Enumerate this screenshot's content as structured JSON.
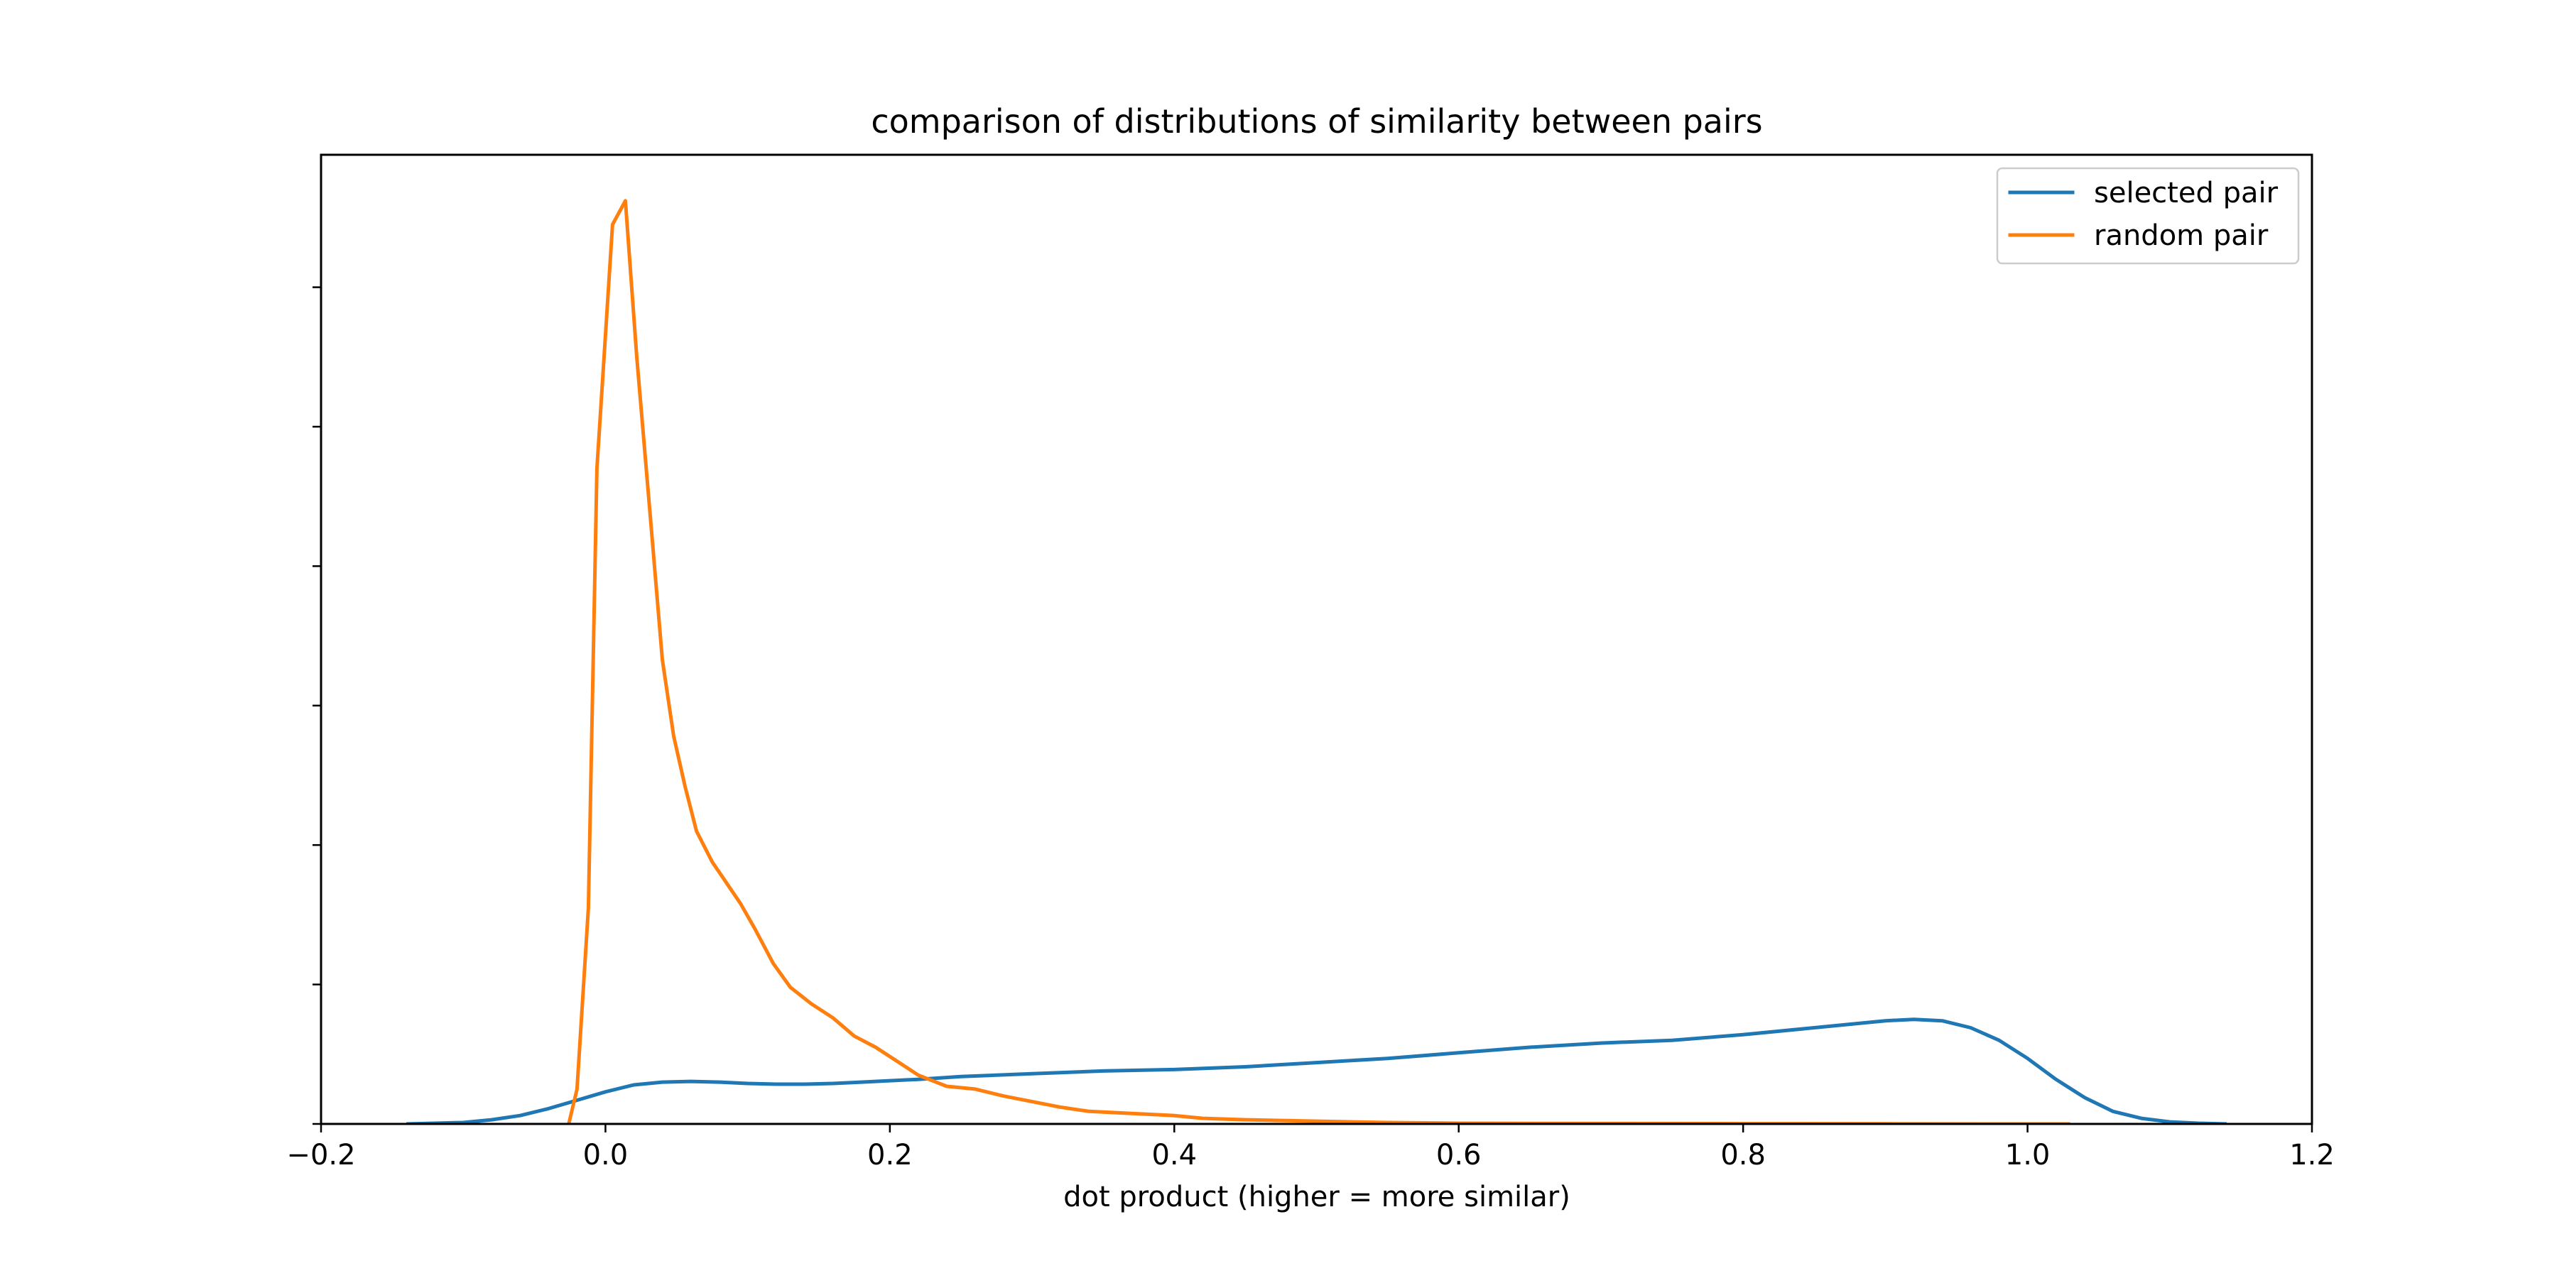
{
  "chart_data": {
    "type": "line",
    "title": "comparison of distributions of similarity between pairs",
    "xlabel": "dot product (higher = more similar)",
    "ylabel": "",
    "xlim": [
      -0.2,
      1.2
    ],
    "ylim": [
      0,
      6.95
    ],
    "x_ticks": [
      -0.2,
      0.0,
      0.2,
      0.4,
      0.6,
      0.8,
      1.0,
      1.2
    ],
    "x_tick_labels": [
      "−0.2",
      "0.0",
      "0.2",
      "0.4",
      "0.6",
      "0.8",
      "1.0",
      "1.2"
    ],
    "y_ticks": [
      0,
      1,
      2,
      3,
      4,
      5,
      6
    ],
    "y_tick_labels": [
      "",
      "",
      "",
      "",
      "",
      "",
      ""
    ],
    "grid": false,
    "legend_position": "upper right",
    "series": [
      {
        "name": "selected pair",
        "color": "#1f77b4",
        "points": [
          [
            -0.14,
            0.0
          ],
          [
            -0.12,
            0.005
          ],
          [
            -0.1,
            0.01
          ],
          [
            -0.08,
            0.03
          ],
          [
            -0.06,
            0.06
          ],
          [
            -0.04,
            0.11
          ],
          [
            -0.02,
            0.17
          ],
          [
            0.0,
            0.23
          ],
          [
            0.02,
            0.28
          ],
          [
            0.04,
            0.3
          ],
          [
            0.06,
            0.305
          ],
          [
            0.08,
            0.3
          ],
          [
            0.1,
            0.29
          ],
          [
            0.12,
            0.285
          ],
          [
            0.14,
            0.285
          ],
          [
            0.16,
            0.29
          ],
          [
            0.18,
            0.3
          ],
          [
            0.2,
            0.31
          ],
          [
            0.22,
            0.32
          ],
          [
            0.25,
            0.34
          ],
          [
            0.3,
            0.36
          ],
          [
            0.35,
            0.38
          ],
          [
            0.4,
            0.39
          ],
          [
            0.45,
            0.41
          ],
          [
            0.5,
            0.44
          ],
          [
            0.55,
            0.47
          ],
          [
            0.6,
            0.51
          ],
          [
            0.65,
            0.55
          ],
          [
            0.7,
            0.58
          ],
          [
            0.75,
            0.6
          ],
          [
            0.8,
            0.64
          ],
          [
            0.85,
            0.69
          ],
          [
            0.88,
            0.72
          ],
          [
            0.9,
            0.74
          ],
          [
            0.92,
            0.75
          ],
          [
            0.94,
            0.74
          ],
          [
            0.96,
            0.69
          ],
          [
            0.98,
            0.6
          ],
          [
            1.0,
            0.47
          ],
          [
            1.02,
            0.32
          ],
          [
            1.04,
            0.19
          ],
          [
            1.06,
            0.09
          ],
          [
            1.08,
            0.04
          ],
          [
            1.1,
            0.015
          ],
          [
            1.12,
            0.005
          ],
          [
            1.14,
            0.0
          ]
        ]
      },
      {
        "name": "random pair",
        "color": "#ff7f0e",
        "points": [
          [
            -0.027,
            -0.05
          ],
          [
            -0.02,
            0.25
          ],
          [
            -0.012,
            1.55
          ],
          [
            -0.006,
            4.7
          ],
          [
            0.005,
            6.45
          ],
          [
            0.014,
            6.62
          ],
          [
            0.022,
            5.5
          ],
          [
            0.032,
            4.3
          ],
          [
            0.04,
            3.33
          ],
          [
            0.048,
            2.78
          ],
          [
            0.056,
            2.42
          ],
          [
            0.064,
            2.1
          ],
          [
            0.075,
            1.88
          ],
          [
            0.085,
            1.73
          ],
          [
            0.095,
            1.58
          ],
          [
            0.105,
            1.4
          ],
          [
            0.118,
            1.15
          ],
          [
            0.13,
            0.98
          ],
          [
            0.145,
            0.86
          ],
          [
            0.16,
            0.76
          ],
          [
            0.175,
            0.63
          ],
          [
            0.19,
            0.55
          ],
          [
            0.205,
            0.45
          ],
          [
            0.22,
            0.35
          ],
          [
            0.24,
            0.27
          ],
          [
            0.26,
            0.25
          ],
          [
            0.28,
            0.2
          ],
          [
            0.3,
            0.16
          ],
          [
            0.32,
            0.12
          ],
          [
            0.34,
            0.09
          ],
          [
            0.36,
            0.08
          ],
          [
            0.4,
            0.06
          ],
          [
            0.42,
            0.04
          ],
          [
            0.45,
            0.03
          ],
          [
            0.5,
            0.02
          ],
          [
            0.55,
            0.01
          ],
          [
            0.6,
            0.005
          ],
          [
            0.7,
            0.003
          ],
          [
            0.8,
            0.002
          ],
          [
            0.9,
            0.001
          ],
          [
            1.0,
            0.0
          ],
          [
            1.03,
            0.0
          ]
        ]
      }
    ]
  }
}
